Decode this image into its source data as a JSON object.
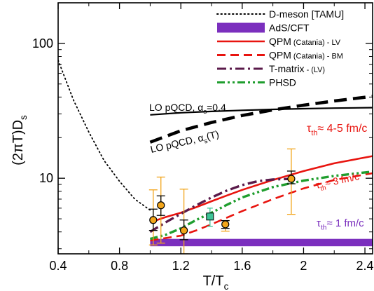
{
  "chart_data": {
    "type": "line",
    "xlabel": "T/T",
    "xlabel_sub": "c",
    "ylabel_main": "(2πT)D",
    "ylabel_sub": "s",
    "xlim": [
      0.4,
      2.45
    ],
    "ylim": [
      2.75,
      200
    ],
    "yscale": "log",
    "xticks": [
      0.4,
      0.8,
      1.2,
      1.6,
      2.0,
      2.4
    ],
    "xtick_labels": [
      "0.4",
      "0.8",
      "1.2",
      "1.6",
      "2",
      "2.4"
    ],
    "yticks": [
      10,
      100
    ],
    "ytick_labels": [
      "10",
      "100"
    ],
    "legend_position": "top-right",
    "legend": [
      {
        "label": "D-meson [TAMU]",
        "color": "#000000",
        "style": "dotted",
        "key": "dmeson"
      },
      {
        "label": "AdS/CFT",
        "color": "#7b2fbe",
        "style": "band",
        "key": "adscft"
      },
      {
        "label": "QPM",
        "sub_label": "(Catania) - LV",
        "color": "#e8140f",
        "style": "solid",
        "key": "qpm_lv"
      },
      {
        "label": "QPM",
        "sub_label": "(Catania) - BM",
        "color": "#e8140f",
        "style": "dashed",
        "key": "qpm_bm"
      },
      {
        "label": "T-matrix",
        "sub_label": "- (LV)",
        "color": "#5a1a4a",
        "style": "dashdot",
        "key": "tmatrix"
      },
      {
        "label": "PHSD",
        "color": "#1f9e2e",
        "style": "dashdotdot",
        "key": "phsd"
      }
    ],
    "series": [
      {
        "key": "dmeson",
        "color": "#000000",
        "x": [
          0.4,
          0.5,
          0.6,
          0.7,
          0.8,
          0.9,
          1.0
        ],
        "y": [
          75,
          38,
          22,
          13.5,
          9.5,
          7.0,
          5.8
        ]
      },
      {
        "key": "lo_pqcd_04",
        "color": "#000000",
        "x": [
          1.0,
          1.2,
          1.4,
          1.6,
          1.8,
          2.0,
          2.2,
          2.45
        ],
        "y": [
          29.5,
          30.6,
          31.3,
          31.9,
          32.4,
          32.8,
          33.1,
          33.4
        ]
      },
      {
        "key": "lo_pqcd_T",
        "color": "#000000",
        "x": [
          1.0,
          1.2,
          1.4,
          1.6,
          1.8,
          2.0,
          2.2,
          2.45
        ],
        "y": [
          18.5,
          22.5,
          25.9,
          29.2,
          32.1,
          34.8,
          37.4,
          40.5
        ]
      },
      {
        "key": "qpm_lv",
        "color": "#e8140f",
        "x": [
          1.0,
          1.1,
          1.2,
          1.3,
          1.4,
          1.5,
          1.6,
          1.8,
          2.0,
          2.2,
          2.45
        ],
        "y": [
          4.7,
          5.15,
          5.55,
          6.1,
          6.75,
          7.45,
          8.2,
          9.7,
          11.3,
          12.9,
          14.6
        ]
      },
      {
        "key": "qpm_bm",
        "color": "#e8140f",
        "x": [
          1.0,
          1.1,
          1.2,
          1.3,
          1.4,
          1.5,
          1.6,
          1.8,
          2.0,
          2.2,
          2.45
        ],
        "y": [
          3.45,
          3.6,
          3.75,
          4.1,
          4.55,
          5.1,
          5.7,
          7.0,
          8.4,
          9.7,
          10.9
        ]
      },
      {
        "key": "tmatrix",
        "color": "#5a1a4a",
        "x": [
          1.0,
          1.1,
          1.2,
          1.3,
          1.4,
          1.5,
          1.6,
          1.7,
          1.8,
          1.93
        ],
        "y": [
          4.0,
          4.7,
          5.45,
          6.3,
          7.2,
          8.1,
          8.9,
          9.5,
          9.8,
          9.9
        ]
      },
      {
        "key": "phsd",
        "color": "#1f9e2e",
        "x": [
          1.0,
          1.1,
          1.2,
          1.3,
          1.4,
          1.5,
          1.6,
          1.8,
          2.0,
          2.2,
          2.45
        ],
        "y": [
          3.55,
          3.8,
          4.25,
          4.9,
          5.55,
          6.35,
          7.2,
          8.6,
          9.6,
          10.4,
          11.2
        ]
      }
    ],
    "band": {
      "key": "adscft",
      "color": "#7b2fbe",
      "x": [
        1.0,
        2.45
      ],
      "y_low": 3.13,
      "y_high": 3.55
    },
    "points": [
      {
        "x": 1.02,
        "y": 4.9,
        "err_orange": [
          3.2,
          8.2
        ],
        "err_black": [
          4.1,
          5.9
        ]
      },
      {
        "x": 1.07,
        "y": 6.3,
        "err_orange": [
          3.3,
          10.2
        ],
        "err_black": [
          5.3,
          7.4
        ]
      },
      {
        "x": 1.22,
        "y": 4.1,
        "err_orange": [
          2.75,
          8.3
        ],
        "err_black": [
          3.5,
          4.9
        ]
      },
      {
        "x": 1.49,
        "y": 4.55,
        "err_orange": [
          4.05,
          4.85
        ],
        "err_black": [
          4.25,
          4.85
        ]
      },
      {
        "x": 1.92,
        "y": 9.9,
        "err_orange": [
          5.4,
          16.5
        ],
        "err_black": [
          9.1,
          11.3
        ]
      }
    ],
    "phsd_point": {
      "x": 1.39,
      "y": 5.2,
      "err": [
        4.4,
        6.0
      ],
      "color": "#3dc497"
    },
    "annotations": [
      {
        "key": "lo_pqcd_04",
        "main": "LO pQCD, α",
        "sub": "s",
        "tail": "=0.4",
        "color": "#000000"
      },
      {
        "key": "lo_pqcd_T",
        "main": "LO pQCD, α",
        "sub": "s",
        "tail": "(T)",
        "color": "#000000"
      },
      {
        "key": "tau_45",
        "main": "τ",
        "sub": "th",
        "tail": "≈ 4-5 fm/c",
        "color": "#e8140f"
      },
      {
        "key": "tau_3",
        "main": "τ",
        "sub": "th",
        "tail": "≈ 3 fm/c",
        "color": "#e8140f"
      },
      {
        "key": "tau_1",
        "main": "τ",
        "sub": "th",
        "tail": "≈ 1 fm/c",
        "color": "#7b2fbe"
      }
    ]
  }
}
